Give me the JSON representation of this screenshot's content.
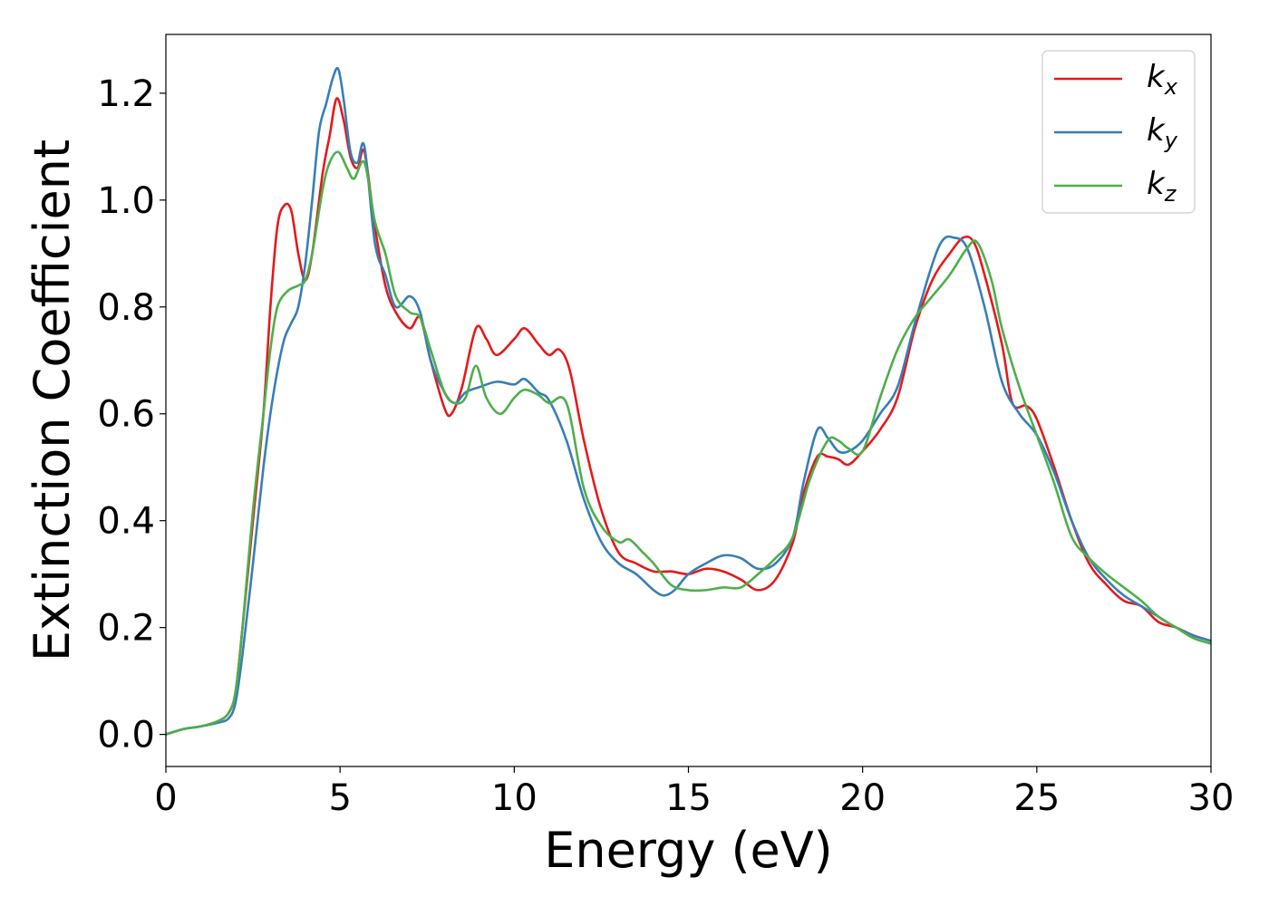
{
  "chart_data": {
    "type": "line",
    "title": "",
    "xlabel": "Energy (eV)",
    "ylabel": "Extinction Coefficient",
    "xlim": [
      0,
      30
    ],
    "ylim": [
      -0.06,
      1.31
    ],
    "xticks": [
      0,
      5,
      10,
      15,
      20,
      25,
      30
    ],
    "xtick_labels": [
      "0",
      "5",
      "10",
      "15",
      "20",
      "25",
      "30"
    ],
    "yticks": [
      0.0,
      0.2,
      0.4,
      0.6,
      0.8,
      1.0,
      1.2
    ],
    "ytick_labels": [
      "0.0",
      "0.2",
      "0.4",
      "0.6",
      "0.8",
      "1.0",
      "1.2"
    ],
    "grid": false,
    "legend_position": "top-right",
    "series": [
      {
        "name": "k_x",
        "label_main": "k",
        "label_sub": "x",
        "color": "#e41a1c",
        "x": [
          0,
          0.5,
          1,
          1.5,
          1.8,
          2,
          2.2,
          2.5,
          2.8,
          3,
          3.2,
          3.4,
          3.6,
          3.8,
          4,
          4.2,
          4.5,
          4.7,
          4.9,
          5.1,
          5.3,
          5.5,
          5.7,
          6,
          6.3,
          6.6,
          7,
          7.3,
          7.6,
          8,
          8.2,
          8.5,
          8.9,
          9.2,
          9.5,
          10,
          10.3,
          10.7,
          11,
          11.3,
          11.6,
          12,
          12.5,
          13,
          13.5,
          14,
          14.5,
          15,
          15.5,
          16,
          16.5,
          17,
          17.5,
          18,
          18.3,
          18.7,
          19,
          19.3,
          19.6,
          20,
          20.5,
          21,
          21.5,
          22,
          22.5,
          22.9,
          23.2,
          23.5,
          24,
          24.3,
          24.7,
          25,
          25.5,
          26,
          26.5,
          27,
          27.5,
          28,
          28.5,
          29,
          29.5,
          30
        ],
        "y": [
          0.0,
          0.01,
          0.015,
          0.025,
          0.04,
          0.08,
          0.2,
          0.4,
          0.6,
          0.8,
          0.95,
          0.99,
          0.98,
          0.9,
          0.85,
          0.9,
          1.05,
          1.12,
          1.19,
          1.15,
          1.08,
          1.06,
          1.09,
          0.95,
          0.84,
          0.79,
          0.76,
          0.78,
          0.7,
          0.61,
          0.6,
          0.65,
          0.76,
          0.74,
          0.71,
          0.74,
          0.76,
          0.73,
          0.71,
          0.72,
          0.68,
          0.55,
          0.42,
          0.34,
          0.32,
          0.305,
          0.305,
          0.3,
          0.31,
          0.305,
          0.29,
          0.27,
          0.29,
          0.36,
          0.45,
          0.52,
          0.52,
          0.515,
          0.505,
          0.53,
          0.57,
          0.63,
          0.76,
          0.85,
          0.9,
          0.93,
          0.92,
          0.86,
          0.73,
          0.62,
          0.615,
          0.59,
          0.5,
          0.4,
          0.32,
          0.28,
          0.25,
          0.24,
          0.21,
          0.2,
          0.185,
          0.175
        ]
      },
      {
        "name": "k_y",
        "label_main": "k",
        "label_sub": "y",
        "color": "#377eb8",
        "x": [
          0,
          0.5,
          1,
          1.5,
          1.8,
          2,
          2.2,
          2.5,
          2.8,
          3,
          3.2,
          3.4,
          3.6,
          3.8,
          4,
          4.2,
          4.4,
          4.6,
          4.8,
          4.95,
          5.1,
          5.3,
          5.5,
          5.7,
          6,
          6.3,
          6.6,
          7,
          7.3,
          7.6,
          8,
          8.3,
          8.6,
          9,
          9.5,
          10,
          10.3,
          10.7,
          11,
          11.5,
          12,
          12.5,
          13,
          13.5,
          14,
          14.3,
          14.6,
          15,
          15.5,
          16,
          16.5,
          17,
          17.5,
          18,
          18.3,
          18.7,
          19,
          19.3,
          19.6,
          20,
          20.5,
          21,
          21.5,
          22,
          22.3,
          22.6,
          23,
          23.5,
          24,
          24.5,
          25,
          25.5,
          26,
          26.5,
          27,
          27.5,
          28,
          28.5,
          29,
          29.5,
          30
        ],
        "y": [
          0.0,
          0.01,
          0.015,
          0.022,
          0.03,
          0.06,
          0.15,
          0.32,
          0.5,
          0.6,
          0.68,
          0.74,
          0.77,
          0.8,
          0.88,
          1.0,
          1.13,
          1.18,
          1.23,
          1.245,
          1.19,
          1.09,
          1.07,
          1.1,
          0.92,
          0.86,
          0.8,
          0.82,
          0.79,
          0.7,
          0.64,
          0.62,
          0.64,
          0.65,
          0.66,
          0.655,
          0.665,
          0.64,
          0.625,
          0.55,
          0.44,
          0.36,
          0.32,
          0.3,
          0.27,
          0.26,
          0.27,
          0.3,
          0.32,
          0.335,
          0.33,
          0.31,
          0.32,
          0.37,
          0.47,
          0.57,
          0.555,
          0.53,
          0.53,
          0.55,
          0.6,
          0.65,
          0.77,
          0.88,
          0.925,
          0.93,
          0.91,
          0.8,
          0.66,
          0.6,
          0.56,
          0.49,
          0.4,
          0.33,
          0.29,
          0.26,
          0.24,
          0.22,
          0.2,
          0.185,
          0.175
        ]
      },
      {
        "name": "k_z",
        "label_main": "k",
        "label_sub": "z",
        "color": "#4daf4a",
        "x": [
          0,
          0.5,
          1,
          1.5,
          1.8,
          2,
          2.2,
          2.5,
          2.8,
          3,
          3.2,
          3.5,
          3.8,
          4,
          4.2,
          4.5,
          4.7,
          4.95,
          5.2,
          5.4,
          5.7,
          6,
          6.3,
          6.6,
          7,
          7.3,
          7.6,
          8,
          8.3,
          8.6,
          8.9,
          9.2,
          9.6,
          10,
          10.3,
          10.7,
          11,
          11.5,
          12,
          12.5,
          13,
          13.3,
          13.7,
          14,
          14.5,
          15,
          15.5,
          16,
          16.5,
          17,
          17.5,
          18,
          18.5,
          19,
          19.3,
          19.6,
          20,
          20.5,
          21,
          21.5,
          22,
          22.5,
          23,
          23.3,
          23.7,
          24,
          24.5,
          25,
          25.5,
          26,
          26.5,
          27,
          27.5,
          28,
          28.5,
          29,
          29.5,
          30
        ],
        "y": [
          0.0,
          0.01,
          0.015,
          0.025,
          0.04,
          0.08,
          0.2,
          0.42,
          0.6,
          0.72,
          0.8,
          0.83,
          0.84,
          0.85,
          0.9,
          1.02,
          1.07,
          1.09,
          1.06,
          1.04,
          1.07,
          0.96,
          0.9,
          0.82,
          0.79,
          0.78,
          0.72,
          0.64,
          0.62,
          0.63,
          0.69,
          0.63,
          0.6,
          0.63,
          0.645,
          0.635,
          0.62,
          0.62,
          0.46,
          0.39,
          0.36,
          0.365,
          0.34,
          0.32,
          0.28,
          0.27,
          0.27,
          0.275,
          0.275,
          0.3,
          0.33,
          0.37,
          0.48,
          0.55,
          0.55,
          0.535,
          0.53,
          0.63,
          0.72,
          0.78,
          0.82,
          0.86,
          0.91,
          0.92,
          0.85,
          0.76,
          0.65,
          0.56,
          0.47,
          0.37,
          0.33,
          0.3,
          0.275,
          0.25,
          0.22,
          0.2,
          0.18,
          0.17
        ]
      }
    ]
  }
}
